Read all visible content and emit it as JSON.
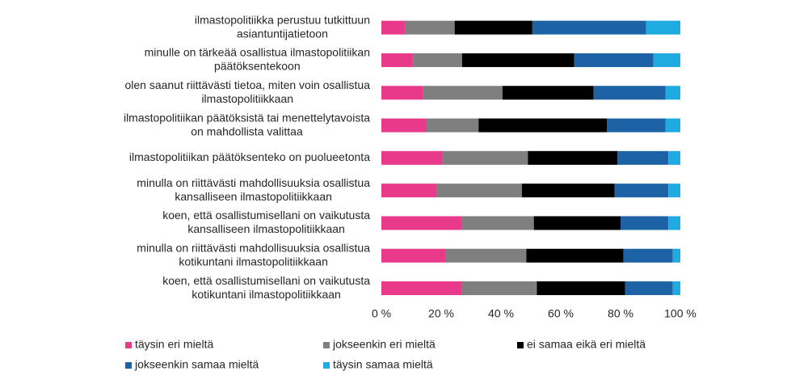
{
  "chart_data": {
    "type": "stacked_bar_horizontal",
    "categories": [
      [
        "ilmastopolitiikka perustuu tutkittuun",
        "asiantuntijatietoon"
      ],
      [
        "minulle on tärkeää osallistua ilmastopolitiikan",
        "päätöksentekoon"
      ],
      [
        "olen saanut riittävästi tietoa, miten voin osallistua",
        "ilmastopolitiikkaan"
      ],
      [
        "ilmastopolitiikan päätöksistä tai menettelytavoista",
        "on mahdollista valittaa"
      ],
      [
        "ilmastopolitiikan päätöksenteko on puolueetonta"
      ],
      [
        "minulla on riittävästi mahdollisuuksia osallistua",
        "kansalliseen ilmastopolitiikkaan"
      ],
      [
        "koen, että osallistumisellani on vaikutusta",
        "kansalliseen ilmastopolitiikkaan"
      ],
      [
        "minulla on riittävästi mahdollisuuksia osallistua",
        "kotikuntani ilmastopolitiikkaan"
      ],
      [
        "koen, että osallistumisellani on vaikutusta",
        "kotikuntani ilmastopolitiikkaan"
      ]
    ],
    "series": [
      {
        "name": "täysin eri mieltä",
        "color": "#e8398b",
        "values": [
          8,
          10.5,
          14,
          15,
          20.5,
          18.5,
          27,
          21.5,
          27
        ]
      },
      {
        "name": "jokseenkin eri mieltä",
        "color": "#7f7f7f",
        "values": [
          16.5,
          16.5,
          26.5,
          17.5,
          28.5,
          28.5,
          24,
          27,
          25
        ]
      },
      {
        "name": "ei samaa eikä eri mieltä",
        "color": "#000000",
        "values": [
          26,
          37.5,
          30.5,
          43,
          30,
          31,
          29,
          32.5,
          29.5
        ]
      },
      {
        "name": "jokseenkin samaa mieltä",
        "color": "#1d62a5",
        "values": [
          38,
          26.5,
          24,
          19.5,
          17,
          18,
          16,
          16.5,
          16
        ]
      },
      {
        "name": "täysin samaa mieltä",
        "color": "#1faae2",
        "values": [
          11.5,
          9,
          5,
          5,
          4,
          4,
          4,
          2.5,
          2.5
        ]
      }
    ],
    "xlim": [
      0,
      100
    ],
    "xticks": [
      {
        "value": 0,
        "label": "0 %"
      },
      {
        "value": 20,
        "label": "20 %"
      },
      {
        "value": 40,
        "label": "40 %"
      },
      {
        "value": 60,
        "label": "60 %"
      },
      {
        "value": 80,
        "label": "80 %"
      },
      {
        "value": 100,
        "label": "100 %"
      }
    ],
    "legend": "bottom"
  }
}
